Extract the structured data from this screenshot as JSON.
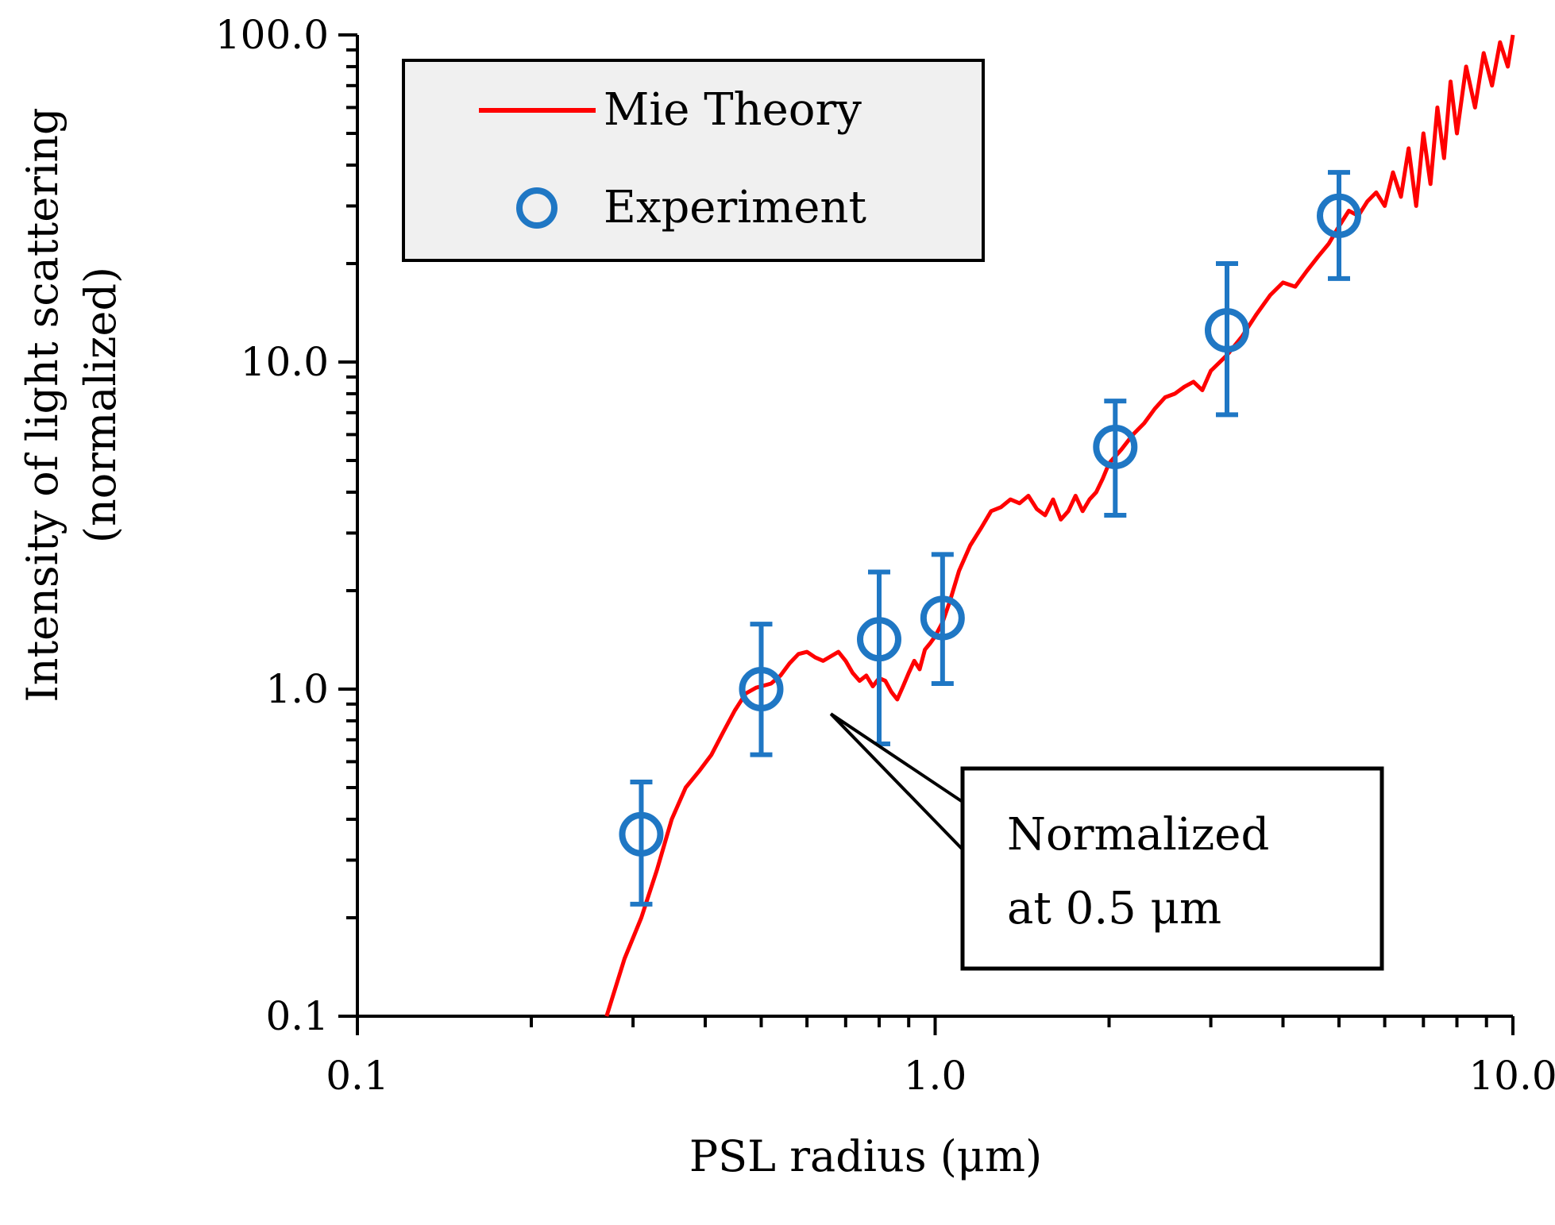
{
  "chart_data": {
    "type": "scatter",
    "title": "",
    "xlabel": "PSL radius (μm)",
    "ylabel_line1": "Intensity of light scattering",
    "ylabel_line2": "(normalized)",
    "xscale": "log",
    "yscale": "log",
    "xlim": [
      0.1,
      10.0
    ],
    "ylim": [
      0.1,
      100.0
    ],
    "x_tick_labels": [
      "0.1",
      "1.0",
      "10.0"
    ],
    "y_tick_labels": [
      "0.1",
      "1.0",
      "10.0",
      "100.0"
    ],
    "grid": false,
    "legend_position": "top-left",
    "series": [
      {
        "name": "Mie Theory",
        "kind": "line",
        "color": "#ff0000",
        "x": [
          0.27,
          0.29,
          0.31,
          0.33,
          0.35,
          0.37,
          0.39,
          0.41,
          0.43,
          0.45,
          0.47,
          0.49,
          0.5,
          0.52,
          0.54,
          0.56,
          0.58,
          0.6,
          0.62,
          0.64,
          0.66,
          0.68,
          0.7,
          0.72,
          0.74,
          0.76,
          0.78,
          0.8,
          0.82,
          0.84,
          0.86,
          0.88,
          0.9,
          0.92,
          0.94,
          0.96,
          0.98,
          1.0,
          1.03,
          1.06,
          1.1,
          1.15,
          1.2,
          1.25,
          1.3,
          1.35,
          1.4,
          1.45,
          1.5,
          1.55,
          1.6,
          1.65,
          1.7,
          1.75,
          1.8,
          1.85,
          1.9,
          1.95,
          2.0,
          2.1,
          2.2,
          2.3,
          2.4,
          2.5,
          2.6,
          2.7,
          2.8,
          2.9,
          3.0,
          3.2,
          3.4,
          3.6,
          3.8,
          4.0,
          4.2,
          4.4,
          4.6,
          4.8,
          5.0,
          5.2,
          5.4,
          5.6,
          5.8,
          6.0,
          6.2,
          6.4,
          6.6,
          6.8,
          7.0,
          7.2,
          7.4,
          7.6,
          7.8,
          8.0,
          8.3,
          8.6,
          8.9,
          9.2,
          9.5,
          9.8,
          10.0
        ],
        "y": [
          0.1,
          0.15,
          0.2,
          0.28,
          0.4,
          0.5,
          0.56,
          0.63,
          0.74,
          0.86,
          0.97,
          1.01,
          1.02,
          1.04,
          1.1,
          1.2,
          1.28,
          1.3,
          1.25,
          1.22,
          1.26,
          1.3,
          1.22,
          1.12,
          1.06,
          1.1,
          1.02,
          1.08,
          1.06,
          0.98,
          0.93,
          1.02,
          1.12,
          1.22,
          1.15,
          1.32,
          1.38,
          1.45,
          1.6,
          1.85,
          2.3,
          2.75,
          3.1,
          3.5,
          3.6,
          3.8,
          3.7,
          3.9,
          3.55,
          3.4,
          3.8,
          3.3,
          3.5,
          3.9,
          3.5,
          3.8,
          4.0,
          4.4,
          4.9,
          5.4,
          6.0,
          6.5,
          7.2,
          7.8,
          8.0,
          8.4,
          8.7,
          8.2,
          9.4,
          10.5,
          12.0,
          14.0,
          16.0,
          17.5,
          17.0,
          19.0,
          21.0,
          23.0,
          26.0,
          29.0,
          28.0,
          31.0,
          33.0,
          30.0,
          38.0,
          32.0,
          45.0,
          30.0,
          50.0,
          35.0,
          60.0,
          42.0,
          72.0,
          50.0,
          80.0,
          60.0,
          88.0,
          70.0,
          95.0,
          80.0,
          100.0
        ]
      },
      {
        "name": "Experiment",
        "kind": "points_with_error",
        "color": "#1f77c4",
        "x": [
          0.31,
          0.5,
          0.8,
          1.03,
          2.05,
          3.2,
          5.0
        ],
        "y": [
          0.36,
          1.0,
          1.42,
          1.65,
          5.5,
          12.5,
          28.0
        ],
        "y_err_low": [
          0.22,
          0.63,
          0.68,
          1.04,
          3.4,
          6.9,
          18.0
        ],
        "y_err_high": [
          0.52,
          1.58,
          2.28,
          2.58,
          7.6,
          20.0,
          38.0
        ]
      }
    ],
    "annotation": {
      "line1": "Normalized",
      "line2": "at 0.5 μm",
      "points_to": [
        0.66,
        0.84
      ]
    }
  }
}
